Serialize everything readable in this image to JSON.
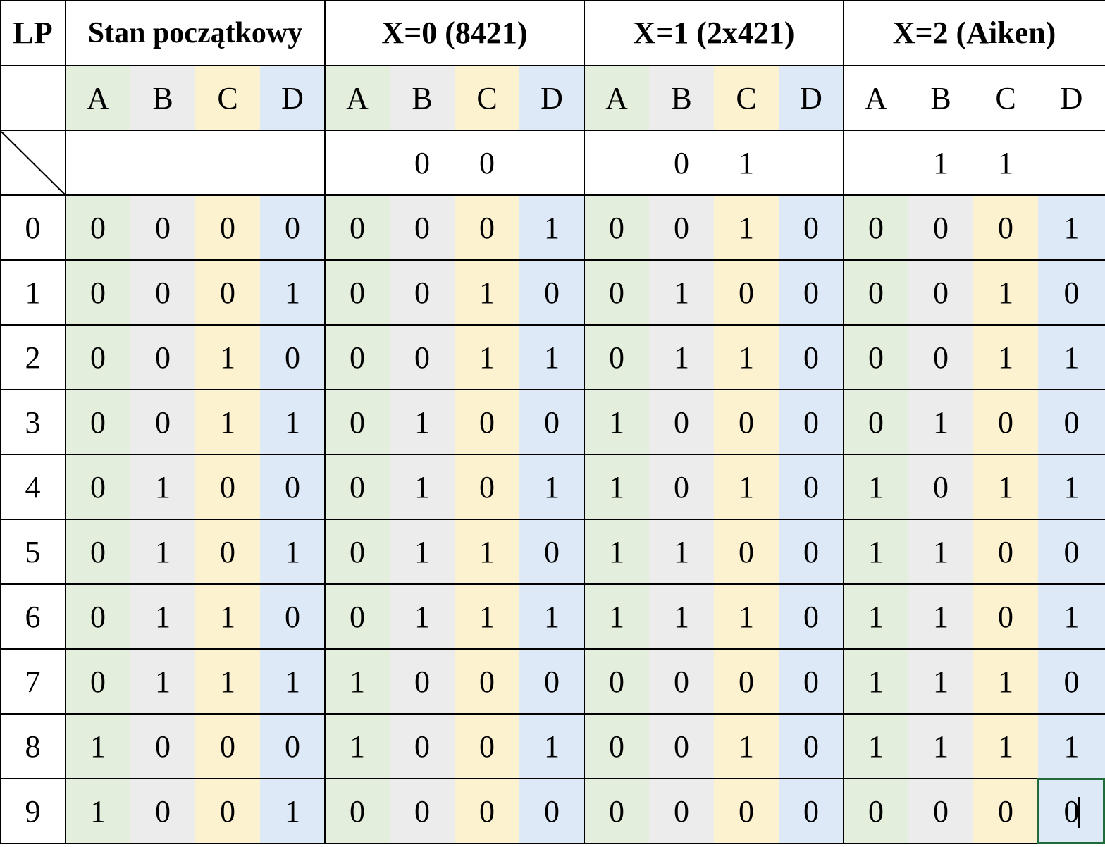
{
  "colors": {
    "column_A": "#e3efdc",
    "column_B": "#ececec",
    "column_C": "#fdf2d0",
    "column_D": "#dde9f7",
    "selection": "#1f6b3a"
  },
  "header": {
    "lp": "LP",
    "groups": [
      "Stan początkowy",
      "X=0 (8421)",
      "X=1 (2x421)",
      "X=2 (Aiken)"
    ]
  },
  "subheaders": [
    [
      "A",
      "B",
      "C",
      "D"
    ],
    [
      "A",
      "B",
      "C",
      "D"
    ],
    [
      "A",
      "B",
      "C",
      "D"
    ],
    [
      "A",
      "B",
      "C",
      "D"
    ]
  ],
  "control_row": [
    [
      "",
      "",
      "",
      ""
    ],
    [
      "",
      "0",
      "0",
      ""
    ],
    [
      "",
      "0",
      "1",
      ""
    ],
    [
      "",
      "1",
      "1",
      ""
    ]
  ],
  "rows": [
    {
      "lp": "0",
      "groups": [
        [
          "0",
          "0",
          "0",
          "0"
        ],
        [
          "0",
          "0",
          "0",
          "1"
        ],
        [
          "0",
          "0",
          "1",
          "0"
        ],
        [
          "0",
          "0",
          "0",
          "1"
        ]
      ]
    },
    {
      "lp": "1",
      "groups": [
        [
          "0",
          "0",
          "0",
          "1"
        ],
        [
          "0",
          "0",
          "1",
          "0"
        ],
        [
          "0",
          "1",
          "0",
          "0"
        ],
        [
          "0",
          "0",
          "1",
          "0"
        ]
      ]
    },
    {
      "lp": "2",
      "groups": [
        [
          "0",
          "0",
          "1",
          "0"
        ],
        [
          "0",
          "0",
          "1",
          "1"
        ],
        [
          "0",
          "1",
          "1",
          "0"
        ],
        [
          "0",
          "0",
          "1",
          "1"
        ]
      ]
    },
    {
      "lp": "3",
      "groups": [
        [
          "0",
          "0",
          "1",
          "1"
        ],
        [
          "0",
          "1",
          "0",
          "0"
        ],
        [
          "1",
          "0",
          "0",
          "0"
        ],
        [
          "0",
          "1",
          "0",
          "0"
        ]
      ]
    },
    {
      "lp": "4",
      "groups": [
        [
          "0",
          "1",
          "0",
          "0"
        ],
        [
          "0",
          "1",
          "0",
          "1"
        ],
        [
          "1",
          "0",
          "1",
          "0"
        ],
        [
          "1",
          "0",
          "1",
          "1"
        ]
      ]
    },
    {
      "lp": "5",
      "groups": [
        [
          "0",
          "1",
          "0",
          "1"
        ],
        [
          "0",
          "1",
          "1",
          "0"
        ],
        [
          "1",
          "1",
          "0",
          "0"
        ],
        [
          "1",
          "1",
          "0",
          "0"
        ]
      ]
    },
    {
      "lp": "6",
      "groups": [
        [
          "0",
          "1",
          "1",
          "0"
        ],
        [
          "0",
          "1",
          "1",
          "1"
        ],
        [
          "1",
          "1",
          "1",
          "0"
        ],
        [
          "1",
          "1",
          "0",
          "1"
        ]
      ]
    },
    {
      "lp": "7",
      "groups": [
        [
          "0",
          "1",
          "1",
          "1"
        ],
        [
          "1",
          "0",
          "0",
          "0"
        ],
        [
          "0",
          "0",
          "0",
          "0"
        ],
        [
          "1",
          "1",
          "1",
          "0"
        ]
      ]
    },
    {
      "lp": "8",
      "groups": [
        [
          "1",
          "0",
          "0",
          "0"
        ],
        [
          "1",
          "0",
          "0",
          "1"
        ],
        [
          "0",
          "0",
          "1",
          "0"
        ],
        [
          "1",
          "1",
          "1",
          "1"
        ]
      ]
    },
    {
      "lp": "9",
      "groups": [
        [
          "1",
          "0",
          "0",
          "1"
        ],
        [
          "0",
          "0",
          "0",
          "0"
        ],
        [
          "0",
          "0",
          "0",
          "0"
        ],
        [
          "0",
          "0",
          "0",
          "0"
        ]
      ]
    }
  ],
  "active_cell": {
    "row": 9,
    "group": 3,
    "col": 3
  }
}
